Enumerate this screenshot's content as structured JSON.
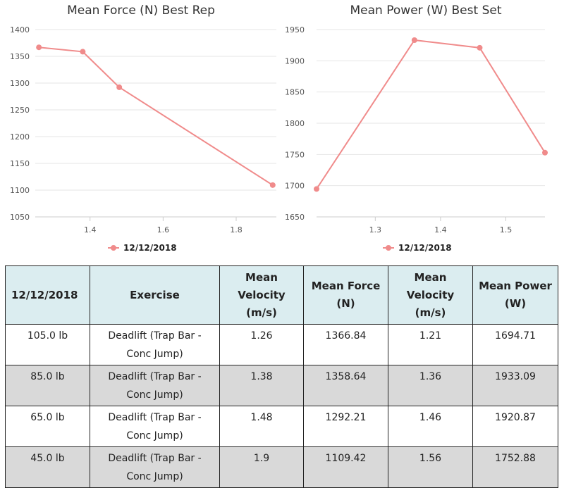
{
  "chart_data": [
    {
      "type": "line",
      "title": "Mean Force (N) Best Rep",
      "xlim": [
        1.25,
        1.91
      ],
      "ylim": [
        1050,
        1400
      ],
      "xticks": [
        1.4,
        1.6,
        1.8
      ],
      "yticks": [
        1050,
        1100,
        1150,
        1200,
        1250,
        1300,
        1350,
        1400
      ],
      "grid": "horizontal",
      "legend_position": "bottom",
      "series": [
        {
          "name": "12/12/2018",
          "color": "#f08b8b",
          "x": [
            1.26,
            1.38,
            1.48,
            1.9
          ],
          "y": [
            1366.84,
            1358.64,
            1292.21,
            1109.42
          ]
        }
      ]
    },
    {
      "type": "line",
      "title": "Mean Power (W) Best Set",
      "xlim": [
        1.21,
        1.56
      ],
      "ylim": [
        1650,
        1950
      ],
      "xticks": [
        1.3,
        1.4,
        1.5
      ],
      "yticks": [
        1650,
        1700,
        1750,
        1800,
        1850,
        1900,
        1950
      ],
      "grid": "horizontal",
      "legend_position": "bottom",
      "series": [
        {
          "name": "12/12/2018",
          "color": "#f08b8b",
          "x": [
            1.21,
            1.36,
            1.46,
            1.56
          ],
          "y": [
            1694.71,
            1933.09,
            1920.87,
            1752.88
          ]
        }
      ]
    }
  ],
  "table": {
    "headers": [
      "12/12/2018",
      "Exercise",
      "Mean Velocity (m/s)",
      "Mean Force (N)",
      "Mean Velocity (m/s)",
      "Mean Power (W)"
    ],
    "rows": [
      [
        "105.0 lb",
        "Deadlift (Trap Bar - Conc Jump)",
        "1.26",
        "1366.84",
        "1.21",
        "1694.71"
      ],
      [
        "85.0 lb",
        "Deadlift (Trap Bar - Conc Jump)",
        "1.38",
        "1358.64",
        "1.36",
        "1933.09"
      ],
      [
        "65.0 lb",
        "Deadlift (Trap Bar - Conc Jump)",
        "1.48",
        "1292.21",
        "1.46",
        "1920.87"
      ],
      [
        "45.0 lb",
        "Deadlift (Trap Bar - Conc Jump)",
        "1.9",
        "1109.42",
        "1.56",
        "1752.88"
      ]
    ]
  },
  "colors": {
    "header_bg": "#dbedf0",
    "alt_row_bg": "#d9d9d9",
    "grid": "#e6e6e6",
    "series": "#f08b8b"
  }
}
